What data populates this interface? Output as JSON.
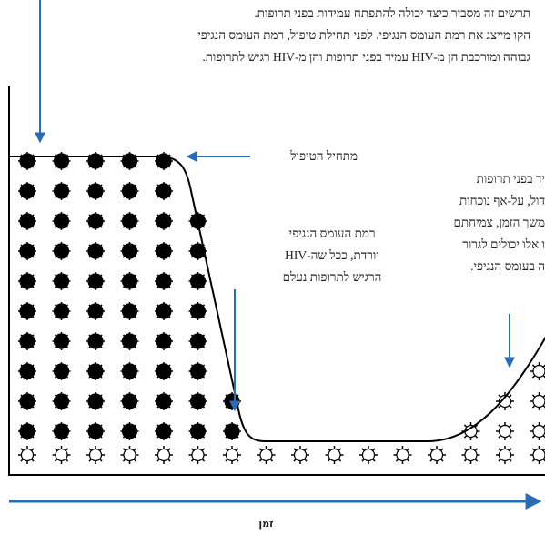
{
  "intro": [
    "תרשים זה מסביר כיצד יכולה להתפתח עמידות בפני תרופות.",
    "הקו מייצג את רמת העומס הנגיפי. לפני תחילת טיפול, רמת העומס הנגיפי",
    "גבוהה ומורכבת הן מ-HIV עמיד בפני תרופות והן מ-HIV רגיש לתרופות."
  ],
  "labels": {
    "treatment_start": "מתחיל הטיפול",
    "drop": [
      "רמת העומס הנגיפי",
      "יורדת, ככל שה-HIV",
      "הרגיש לתרופות נעלם"
    ],
    "resistant": [
      "יד בפני תרופות",
      "דול, על-אף נוכחות",
      "משך הזמן, צמיחתם",
      "ו אלו יכולים לגרור",
      "ה בעומס הנגיפי."
    ]
  },
  "axis": {
    "x": "זמן"
  }
}
